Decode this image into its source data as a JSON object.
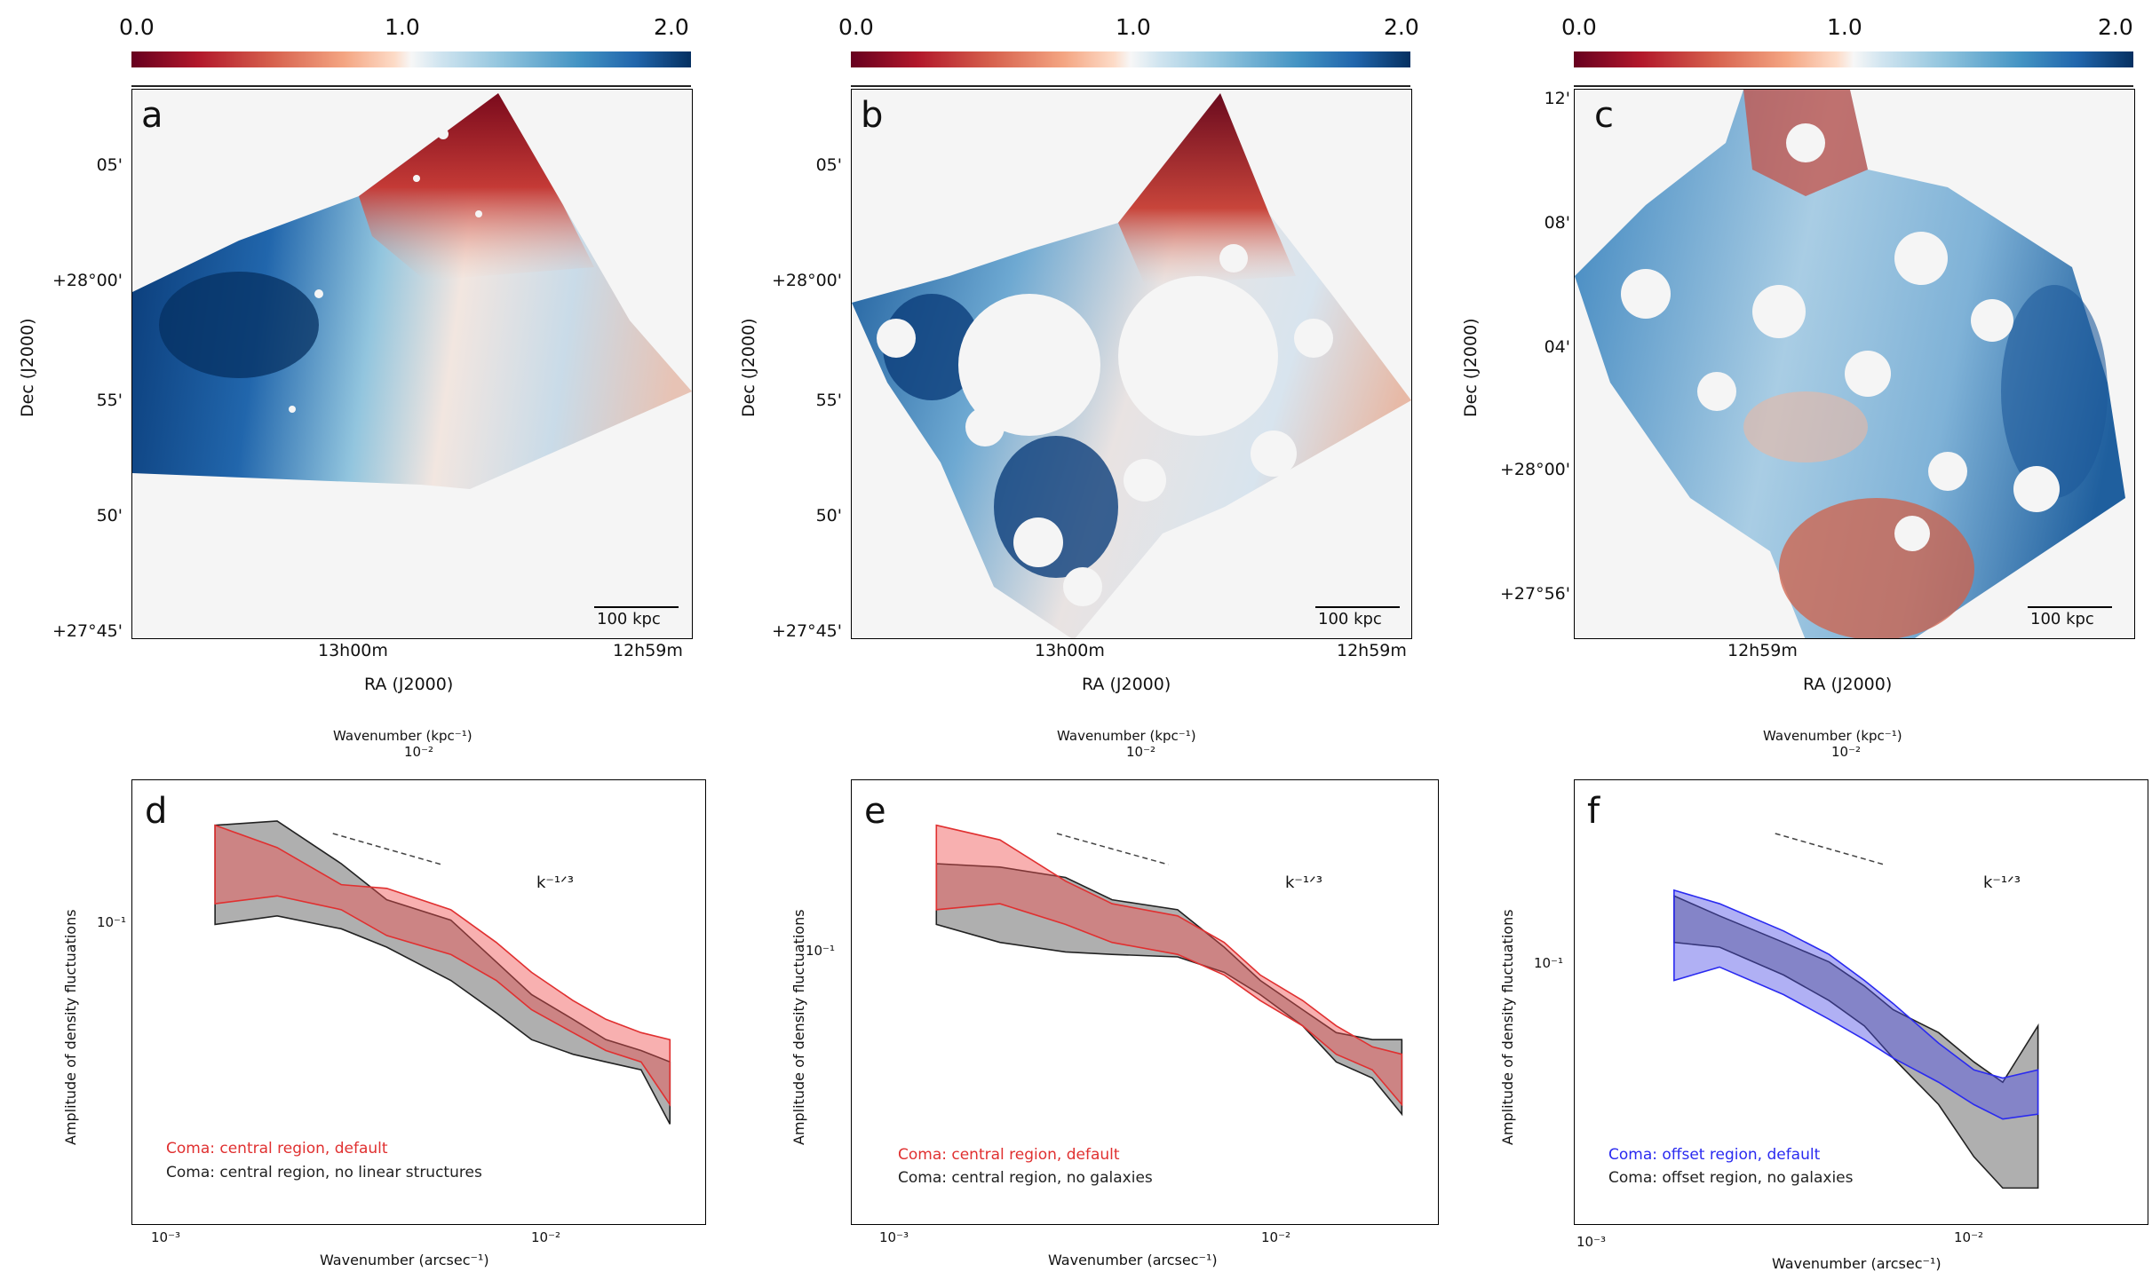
{
  "colorbar": {
    "ticks": [
      "0.0",
      "1.0",
      "2.0"
    ]
  },
  "panels": {
    "a": {
      "label": "a",
      "yticks": [
        "05'",
        "+28°00'",
        "55'",
        "50'",
        "+27°45'"
      ],
      "xticks": [
        "13h00m",
        "12h59m"
      ],
      "xlabel": "RA (J2000)",
      "ylabel": "Dec (J2000)",
      "scalebar": "100 kpc"
    },
    "b": {
      "label": "b",
      "yticks": [
        "05'",
        "+28°00'",
        "55'",
        "50'",
        "+27°45'"
      ],
      "xticks": [
        "13h00m",
        "12h59m"
      ],
      "xlabel": "RA (J2000)",
      "ylabel": "Dec (J2000)",
      "scalebar": "100 kpc"
    },
    "c": {
      "label": "c",
      "yticks": [
        "12'",
        "08'",
        "04'",
        "+28°00'",
        "+27°56'"
      ],
      "xticks": [
        "12h59m"
      ],
      "xlabel": "RA (J2000)",
      "ylabel": "Dec (J2000)",
      "scalebar": "100 kpc"
    },
    "d": {
      "label": "d",
      "top_label": "Wavenumber (kpc⁻¹)",
      "top_tick": "10⁻²",
      "xlabel": "Wavenumber (arcsec⁻¹)",
      "xticks": [
        "10⁻³",
        "10⁻²"
      ],
      "ylabel": "Amplitude of density fluctuations",
      "ytick": "10⁻¹",
      "slope": "k⁻¹ᐟ³",
      "legend": [
        "Coma: central region, default",
        "Coma: central region, no linear structures"
      ]
    },
    "e": {
      "label": "e",
      "top_label": "Wavenumber (kpc⁻¹)",
      "top_tick": "10⁻²",
      "xlabel": "Wavenumber (arcsec⁻¹)",
      "xticks": [
        "10⁻³",
        "10⁻²"
      ],
      "ylabel": "Amplitude of density fluctuations",
      "ytick": "10⁻¹",
      "slope": "k⁻¹ᐟ³",
      "legend": [
        "Coma: central region, default",
        "Coma: central region, no galaxies"
      ]
    },
    "f": {
      "label": "f",
      "top_label": "Wavenumber (kpc⁻¹)",
      "top_tick": "10⁻²",
      "xlabel": "Wavenumber (arcsec⁻¹)",
      "xticks": [
        "10⁻³",
        "10⁻²"
      ],
      "ylabel": "Amplitude of density fluctuations",
      "ytick": "10⁻¹",
      "slope": "k⁻¹ᐟ³",
      "legend": [
        "Coma: offset region, default",
        "Coma: offset region, no galaxies"
      ]
    }
  },
  "colors": {
    "red": "#e03030",
    "blue": "#2a2af0",
    "black": "#222222"
  },
  "chart_data": [
    {
      "type": "area",
      "panel": "d",
      "xscale": "log",
      "yscale": "log",
      "xlim": [
        0.0008,
        0.03
      ],
      "x": [
        0.00135,
        0.002,
        0.003,
        0.004,
        0.006,
        0.008,
        0.01,
        0.013,
        0.016,
        0.02,
        0.024
      ],
      "series": [
        {
          "name": "Coma: central region, default",
          "color": "#e03030",
          "upper": [
            0.165,
            0.15,
            0.128,
            0.126,
            0.115,
            0.1,
            0.088,
            0.078,
            0.072,
            0.068,
            0.066
          ],
          "lower": [
            0.118,
            0.122,
            0.115,
            0.103,
            0.095,
            0.085,
            0.075,
            0.068,
            0.063,
            0.06,
            0.05
          ]
        },
        {
          "name": "Coma: central region, no linear structures",
          "color": "#222222",
          "upper": [
            0.165,
            0.168,
            0.14,
            0.12,
            0.11,
            0.092,
            0.08,
            0.072,
            0.066,
            0.063,
            0.06
          ],
          "lower": [
            0.108,
            0.112,
            0.106,
            0.098,
            0.085,
            0.074,
            0.066,
            0.062,
            0.06,
            0.058,
            0.046
          ]
        }
      ]
    },
    {
      "type": "area",
      "panel": "e",
      "xscale": "log",
      "yscale": "log",
      "xlim": [
        0.0008,
        0.03
      ],
      "x": [
        0.00135,
        0.002,
        0.003,
        0.004,
        0.006,
        0.008,
        0.01,
        0.013,
        0.016,
        0.02,
        0.024
      ],
      "series": [
        {
          "name": "Coma: central region, default",
          "color": "#e03030",
          "upper": [
            0.165,
            0.155,
            0.13,
            0.118,
            0.112,
            0.1,
            0.087,
            0.078,
            0.07,
            0.064,
            0.062
          ],
          "lower": [
            0.115,
            0.118,
            0.108,
            0.1,
            0.095,
            0.087,
            0.078,
            0.07,
            0.062,
            0.058,
            0.05
          ]
        },
        {
          "name": "Coma: central region, no galaxies",
          "color": "#222222",
          "upper": [
            0.14,
            0.138,
            0.132,
            0.12,
            0.115,
            0.098,
            0.085,
            0.075,
            0.068,
            0.066,
            0.066
          ],
          "lower": [
            0.108,
            0.1,
            0.096,
            0.095,
            0.094,
            0.088,
            0.08,
            0.07,
            0.06,
            0.056,
            0.048
          ]
        }
      ]
    },
    {
      "type": "area",
      "panel": "f",
      "xscale": "log",
      "yscale": "log",
      "xlim": [
        0.0008,
        0.03
      ],
      "x": [
        0.0015,
        0.002,
        0.003,
        0.004,
        0.005,
        0.006,
        0.008,
        0.01,
        0.012,
        0.015
      ],
      "series": [
        {
          "name": "Coma: offset region, default",
          "color": "#2a2af0",
          "upper": [
            0.125,
            0.118,
            0.105,
            0.095,
            0.085,
            0.077,
            0.065,
            0.058,
            0.056,
            0.058
          ],
          "lower": [
            0.085,
            0.09,
            0.08,
            0.072,
            0.066,
            0.061,
            0.055,
            0.05,
            0.047,
            0.048
          ]
        },
        {
          "name": "Coma: offset region, no galaxies",
          "color": "#222222",
          "upper": [
            0.122,
            0.112,
            0.1,
            0.092,
            0.083,
            0.075,
            0.068,
            0.06,
            0.055,
            0.07
          ],
          "lower": [
            0.1,
            0.098,
            0.087,
            0.078,
            0.07,
            0.061,
            0.05,
            0.04,
            0.035,
            0.035
          ]
        }
      ]
    }
  ]
}
